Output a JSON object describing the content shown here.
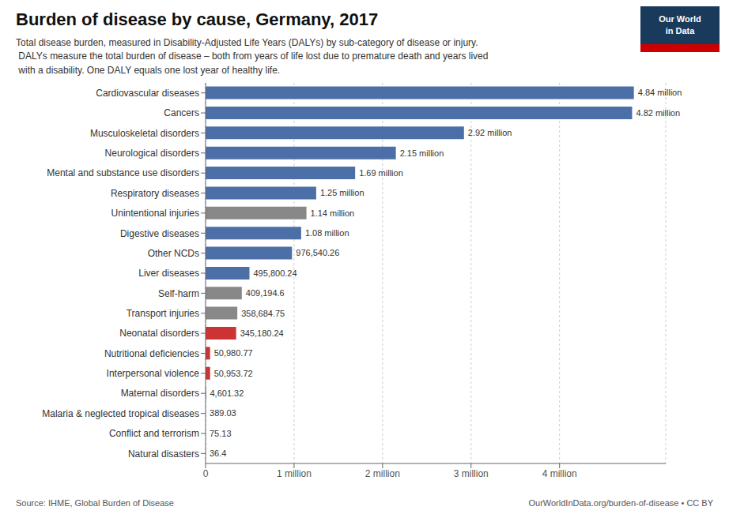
{
  "chart_data": {
    "type": "bar",
    "title": "Burden of disease by cause, Germany, 2017",
    "subtitle": [
      "Total disease burden, measured in Disability-Adjusted Life Years (DALYs) by sub-category of disease or injury.",
      " DALYs measure the total burden of disease – both from years of life lost due to premature death and years lived",
      " with a disability. One DALY equals one lost year of healthy life."
    ],
    "annotations": [
      "Source: IHME, Global Burden of Disease",
      "OurWorldInData.org/burden-of-disease • CC BY",
      "Our World",
      "in Data"
    ],
    "orientation": "horizontal",
    "categories": [
      "Cardiovascular diseases",
      "Cancers",
      "Musculoskeletal disorders",
      "Neurological disorders",
      "Mental and substance use disorders",
      "Respiratory diseases",
      "Unintentional injuries",
      "Digestive diseases",
      "Other NCDs",
      "Liver diseases",
      "Self-harm",
      "Transport injuries",
      "Neonatal disorders",
      "Nutritional deficiencies",
      "Interpersonal violence",
      "Maternal disorders",
      "Malaria & neglected tropical diseases",
      "Conflict and terrorism",
      "Natural disasters"
    ],
    "values": [
      4840000,
      4820000,
      2920000,
      2150000,
      1690000,
      1250000,
      1140000,
      1080000,
      976540.26,
      495800.24,
      409194.6,
      358684.75,
      345180.24,
      50980.77,
      50953.72,
      4601.32,
      389.03,
      75.13,
      36.4
    ],
    "value_labels": [
      "4.84 million",
      "4.82 million",
      "2.92 million",
      "2.15 million",
      "1.69 million",
      "1.25 million",
      "1.14 million",
      "1.08 million",
      "976,540.26",
      "495,800.24",
      "409,194.6",
      "358,684.75",
      "345,180.24",
      "50,980.77",
      "50,953.72",
      "4,601.32",
      "389.03",
      "75.13",
      "36.4"
    ],
    "data_labels": true,
    "colors": [
      "#4d6fa8",
      "#4d6fa8",
      "#4d6fa8",
      "#4d6fa8",
      "#4d6fa8",
      "#4d6fa8",
      "#888888",
      "#4d6fa8",
      "#4d6fa8",
      "#4d6fa8",
      "#888888",
      "#888888",
      "#cc3333",
      "#cc3333",
      "#cc3333",
      "#4d6fa8",
      "#4d6fa8",
      "#4d6fa8",
      "#4d6fa8"
    ],
    "xlim": [
      0,
      5200000
    ],
    "xticks": [
      0,
      {
        "value": 1000000,
        "label": "1 million"
      },
      {
        "value": 2000000,
        "label": "2 million"
      },
      {
        "value": 3000000,
        "label": "3 million"
      },
      {
        "value": 4000000,
        "label": "4 million"
      }
    ],
    "grid": true
  }
}
